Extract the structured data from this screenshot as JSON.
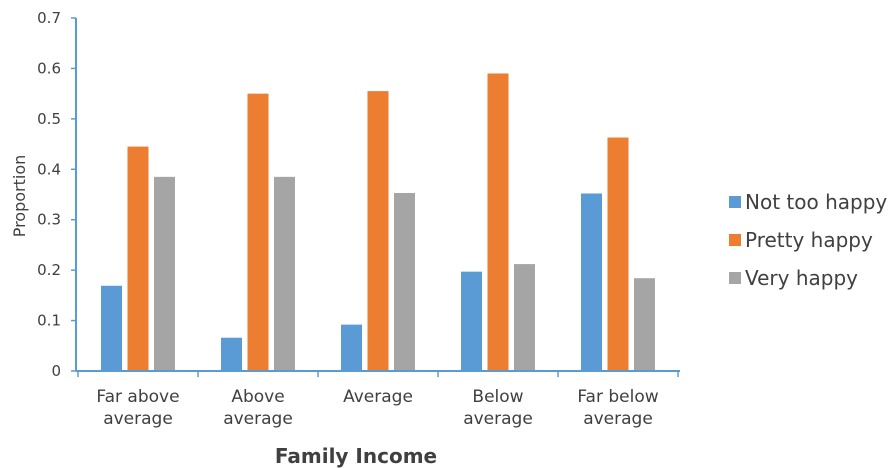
{
  "chart_data": {
    "type": "bar",
    "title": "",
    "xlabel": "Family Income",
    "ylabel": "Proportion",
    "ylim": [
      0,
      0.7
    ],
    "yticks": [
      0,
      0.1,
      0.2,
      0.3,
      0.4,
      0.5,
      0.6,
      0.7
    ],
    "ytick_labels": [
      "0",
      "0.1",
      "0.2",
      "0.3",
      "0.4",
      "0.5",
      "0.6",
      "0.7"
    ],
    "grid": false,
    "legend_position": "right",
    "categories": [
      [
        "Far above",
        "average"
      ],
      [
        "Above",
        "average"
      ],
      [
        "Average"
      ],
      [
        "Below",
        "average"
      ],
      [
        "Far below",
        "average"
      ]
    ],
    "series": [
      {
        "name": "Not too happy",
        "color": "#5B9BD5",
        "values": [
          0.169,
          0.066,
          0.092,
          0.197,
          0.352
        ]
      },
      {
        "name": "Pretty happy",
        "color": "#ED7D31",
        "values": [
          0.445,
          0.55,
          0.555,
          0.59,
          0.463
        ]
      },
      {
        "name": "Very happy",
        "color": "#A5A5A5",
        "values": [
          0.385,
          0.385,
          0.353,
          0.212,
          0.184
        ]
      }
    ],
    "axis_color": "#5B9BD5"
  }
}
